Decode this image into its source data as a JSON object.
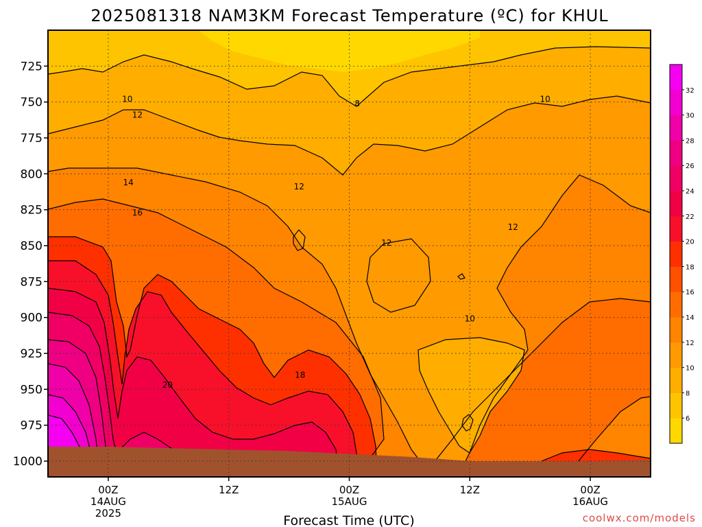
{
  "title": "2025081318 NAM3KM Forecast Temperature (ºC) for KHUL",
  "credit": "coolwx.com/models",
  "chart_data": {
    "type": "heatmap",
    "title": "2025081318 NAM3KM Forecast Temperature (ºC) for KHUL",
    "xlabel": "Forecast Time (UTC)",
    "ylabel": "",
    "x_hours": [
      -6,
      54
    ],
    "y_pressure_hpa": [
      1011,
      700
    ],
    "y_ticks": [
      725,
      750,
      775,
      800,
      825,
      850,
      875,
      900,
      925,
      950,
      975,
      1000
    ],
    "x_ticks": [
      {
        "hour": 0,
        "lines": [
          "00Z",
          "14AUG",
          "2025"
        ]
      },
      {
        "hour": 12,
        "lines": [
          "12Z"
        ]
      },
      {
        "hour": 24,
        "lines": [
          "00Z",
          "15AUG"
        ]
      },
      {
        "hour": 36,
        "lines": [
          "12Z"
        ]
      },
      {
        "hour": 48,
        "lines": [
          "00Z",
          "16AUG"
        ]
      }
    ],
    "colorbar": {
      "levels": [
        4,
        6,
        8,
        10,
        12,
        14,
        16,
        18,
        20,
        22,
        24,
        26,
        28,
        30,
        32,
        34
      ],
      "labels": [
        6,
        8,
        10,
        12,
        14,
        16,
        18,
        20,
        22,
        24,
        26,
        28,
        30,
        32
      ],
      "colors": [
        "#ffd800",
        "#ffc400",
        "#ffae00",
        "#ff9a00",
        "#ff8400",
        "#ff6d00",
        "#ff5000",
        "#ff3000",
        "#f8102a",
        "#f20045",
        "#f00064",
        "#ef0082",
        "#f000a8",
        "#f200cf",
        "#f500f0"
      ]
    },
    "contour_labels": [
      {
        "value": "8",
        "hour": 24.8,
        "hpa": 751
      },
      {
        "value": "10",
        "hour": 1.9,
        "hpa": 748
      },
      {
        "value": "10",
        "hour": 43.5,
        "hpa": 748
      },
      {
        "value": "10",
        "hour": 36.0,
        "hpa": 901
      },
      {
        "value": "12",
        "hour": 2.9,
        "hpa": 759
      },
      {
        "value": "12",
        "hour": 19.0,
        "hpa": 809
      },
      {
        "value": "12",
        "hour": 27.7,
        "hpa": 848
      },
      {
        "value": "12",
        "hour": 40.3,
        "hpa": 837
      },
      {
        "value": "14",
        "hour": 2.0,
        "hpa": 806
      },
      {
        "value": "16",
        "hour": 2.9,
        "hpa": 827
      },
      {
        "value": "18",
        "hour": 19.1,
        "hpa": 940
      },
      {
        "value": "20",
        "hour": 5.9,
        "hpa": 947
      }
    ],
    "surface_pressure_hpa": [
      {
        "hour": -6,
        "hpa": 990
      },
      {
        "hour": 0,
        "hpa": 990
      },
      {
        "hour": 6,
        "hpa": 991
      },
      {
        "hour": 12,
        "hpa": 992
      },
      {
        "hour": 18,
        "hpa": 993
      },
      {
        "hour": 24,
        "hpa": 995
      },
      {
        "hour": 30,
        "hpa": 997
      },
      {
        "hour": 36,
        "hpa": 1000
      },
      {
        "hour": 42,
        "hpa": 1000
      },
      {
        "hour": 48,
        "hpa": 1000
      },
      {
        "hour": 54,
        "hpa": 999
      }
    ],
    "grid": true
  }
}
